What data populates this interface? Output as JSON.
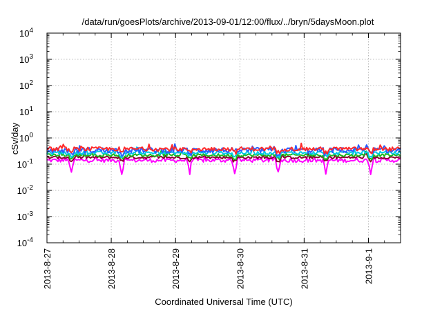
{
  "chart_data": {
    "type": "line",
    "title": "/data/run/goesPlots/archive/2013-09-01/12:00/flux/../bryn/5daysMoon.plot",
    "xlabel": "Coordinated Universal Time (UTC)",
    "ylabel": "cSv/day",
    "yscale": "log",
    "ylim": [
      0.0001,
      10000
    ],
    "xlim": [
      "2013-08-27",
      "2013-09-01 12:00"
    ],
    "grid": true,
    "legend": "none",
    "yticks": [
      {
        "base": "10",
        "exp": "-4",
        "value": 0.0001
      },
      {
        "base": "10",
        "exp": "-3",
        "value": 0.001
      },
      {
        "base": "10",
        "exp": "-2",
        "value": 0.01
      },
      {
        "base": "10",
        "exp": "-1",
        "value": 0.1
      },
      {
        "base": "10",
        "exp": "0",
        "value": 1
      },
      {
        "base": "10",
        "exp": "1",
        "value": 10
      },
      {
        "base": "10",
        "exp": "2",
        "value": 100
      },
      {
        "base": "10",
        "exp": "3",
        "value": 1000
      },
      {
        "base": "10",
        "exp": "4",
        "value": 10000
      }
    ],
    "xticks": [
      "2013-8-27",
      "2013-8-28",
      "2013-8-29",
      "2013-8-30",
      "2013-8-31",
      "2013-9-1"
    ],
    "series": [
      {
        "color": "#ff2a2a",
        "base": 0.38,
        "noise": 0.22,
        "dip": 0.0
      },
      {
        "color": "#2a5cff",
        "base": 0.34,
        "noise": 0.3,
        "dip": 0.0
      },
      {
        "color": "#00c8e6",
        "base": 0.27,
        "noise": 0.18,
        "dip": 0.0
      },
      {
        "color": "#1db81d",
        "base": 0.22,
        "noise": 0.15,
        "dip": 0.0
      },
      {
        "color": "#8b0030",
        "base": 0.18,
        "noise": 0.14,
        "dip": 0.0
      },
      {
        "color": "#ff00ff",
        "base": 0.14,
        "noise": 0.22,
        "dip": 1.0
      }
    ]
  }
}
